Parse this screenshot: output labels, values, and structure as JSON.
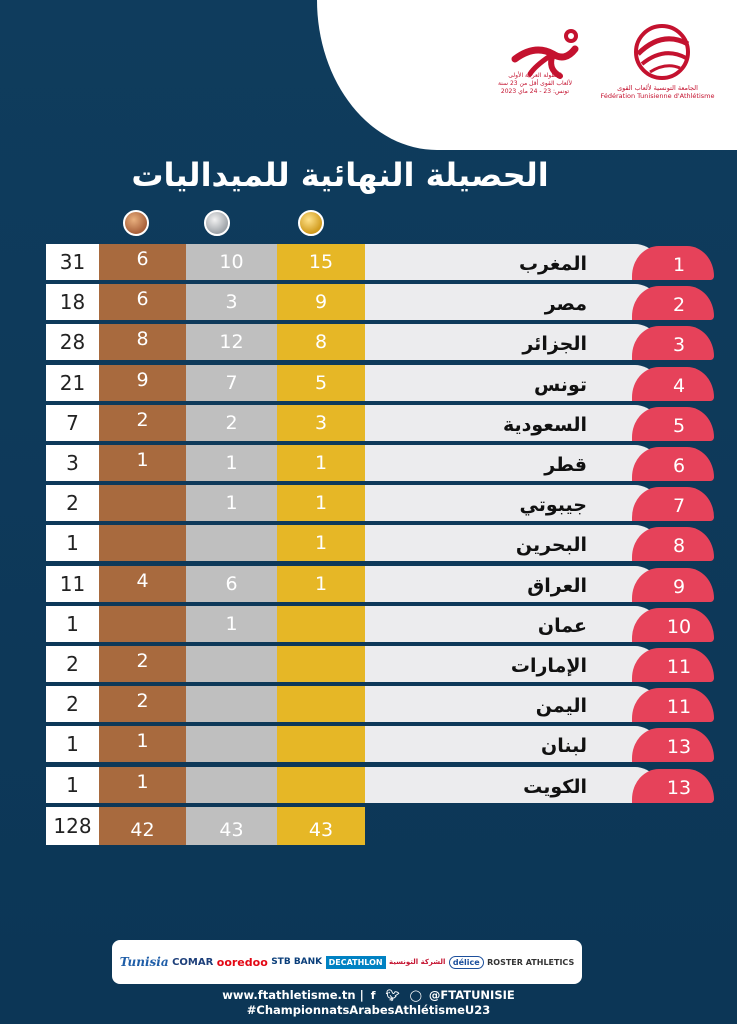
{
  "header": {
    "event_logo_text_line1": "البطولة العربية الأولى",
    "event_logo_text_line2": "لألعاب القوى أقل من 23 سنة",
    "event_logo_text_line3": "تونس: 23 - 24 ماي 2023",
    "federation_name_ar": "الجامعة التونسية لألعاب القوى",
    "federation_name_fr": "Fédération Tunisienne d'Athlétisme"
  },
  "title": "الحصيلة النهائية للميداليات",
  "medal_icons": [
    "bronze-medal-icon",
    "silver-medal-icon",
    "gold-medal-icon"
  ],
  "colors": {
    "background": "#0f3c5d",
    "bronze": "#a86a3e",
    "silver": "#bfbfbf",
    "gold": "#e6b726",
    "rank": "#e6425a",
    "country_bg": "#ececee"
  },
  "rows": [
    {
      "rank": "1",
      "country": "المغرب",
      "gold": "15",
      "silver": "10",
      "bronze": "6",
      "total": "31"
    },
    {
      "rank": "2",
      "country": "مصر",
      "gold": "9",
      "silver": "3",
      "bronze": "6",
      "total": "18"
    },
    {
      "rank": "3",
      "country": "الجزائر",
      "gold": "8",
      "silver": "12",
      "bronze": "8",
      "total": "28"
    },
    {
      "rank": "4",
      "country": "تونس",
      "gold": "5",
      "silver": "7",
      "bronze": "9",
      "total": "21"
    },
    {
      "rank": "5",
      "country": "السعودية",
      "gold": "3",
      "silver": "2",
      "bronze": "2",
      "total": "7"
    },
    {
      "rank": "6",
      "country": "قطر",
      "gold": "1",
      "silver": "1",
      "bronze": "1",
      "total": "3"
    },
    {
      "rank": "7",
      "country": "جيبوتي",
      "gold": "1",
      "silver": "1",
      "bronze": "",
      "total": "2"
    },
    {
      "rank": "8",
      "country": "البحرين",
      "gold": "1",
      "silver": "",
      "bronze": "",
      "total": "1"
    },
    {
      "rank": "9",
      "country": "العراق",
      "gold": "1",
      "silver": "6",
      "bronze": "4",
      "total": "11"
    },
    {
      "rank": "10",
      "country": "عمان",
      "gold": "",
      "silver": "1",
      "bronze": "",
      "total": "1"
    },
    {
      "rank": "11",
      "country": "الإمارات",
      "gold": "",
      "silver": "",
      "bronze": "2",
      "total": "2"
    },
    {
      "rank": "11",
      "country": "اليمن",
      "gold": "",
      "silver": "",
      "bronze": "2",
      "total": "2"
    },
    {
      "rank": "13",
      "country": "لبنان",
      "gold": "",
      "silver": "",
      "bronze": "1",
      "total": "1"
    },
    {
      "rank": "13",
      "country": "الكويت",
      "gold": "",
      "silver": "",
      "bronze": "1",
      "total": "1"
    }
  ],
  "totals": {
    "gold": "43",
    "silver": "43",
    "bronze": "42",
    "total": "128"
  },
  "sponsors": [
    "Tunisia",
    "COMAR",
    "ooredoo",
    "STB BANK",
    "DECATHLON",
    "الشركة التونسية",
    "délice",
    "ROSTER ATHLETICS"
  ],
  "footer": {
    "website": "www.ftathletisme.tn",
    "handle": "@FTATUNISIE",
    "hashtag": "#ChampionnatsArabesAthlétismeU23"
  }
}
